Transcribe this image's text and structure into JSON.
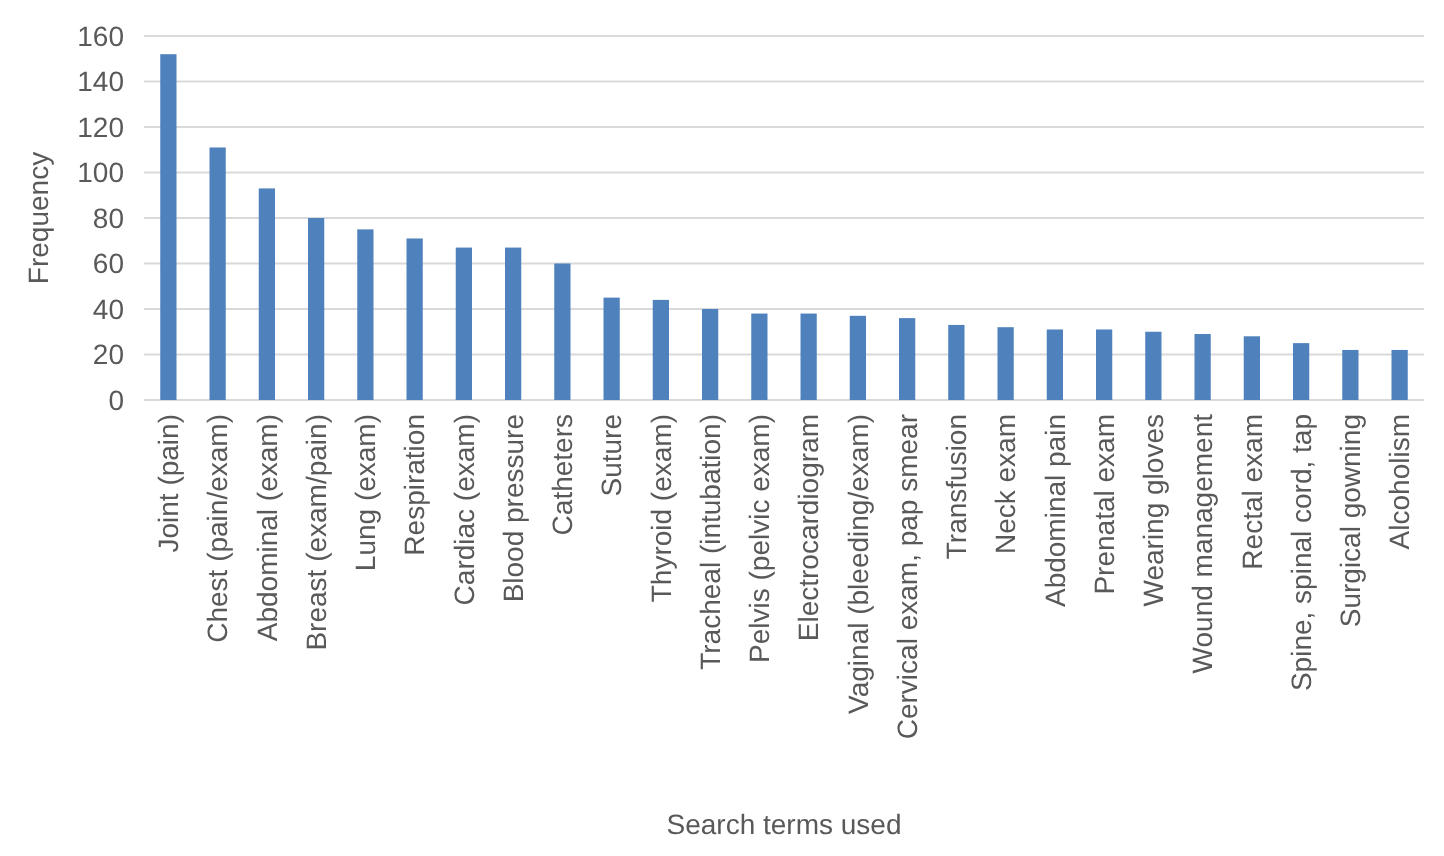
{
  "chart_data": {
    "type": "bar",
    "xlabel": "Search terms used",
    "ylabel": "Frequency",
    "categories": [
      "Joint (pain)",
      "Chest (pain/exam)",
      "Abdominal (exam)",
      "Breast (exam/pain)",
      "Lung (exam)",
      "Respiration",
      "Cardiac (exam)",
      "Blood pressure",
      "Catheters",
      "Suture",
      "Thyroid (exam)",
      "Tracheal (intubation)",
      "Pelvis (pelvic exam)",
      "Electrocardiogram",
      "Vaginal (bleeding/exam)",
      "Cervical exam, pap smear",
      "Transfusion",
      "Neck exam",
      "Abdominal pain",
      "Prenatal exam",
      "Wearing gloves",
      "Wound management",
      "Rectal exam",
      "Spine, spinal cord, tap",
      "Surgical gowning",
      "Alcoholism"
    ],
    "values": [
      152,
      111,
      93,
      80,
      75,
      71,
      67,
      67,
      60,
      45,
      44,
      40,
      38,
      38,
      37,
      36,
      33,
      32,
      31,
      31,
      30,
      29,
      28,
      25,
      22,
      22
    ],
    "color": "#4f81bd",
    "ylim": [
      0,
      160
    ],
    "yticks": [
      0,
      20,
      40,
      60,
      80,
      100,
      120,
      140,
      160
    ],
    "grid": "y"
  }
}
